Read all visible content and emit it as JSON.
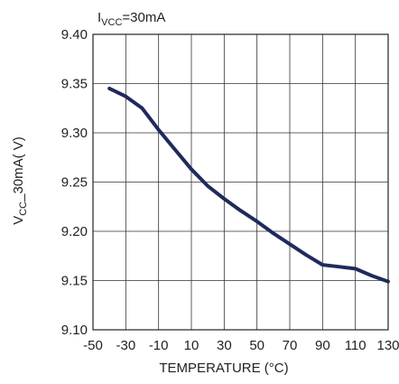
{
  "chart_data": {
    "type": "line",
    "annotation": {
      "prefix": "I",
      "subscript": "VCC",
      "suffix": "=30mA"
    },
    "xlabel": "TEMPERATURE (°C)",
    "ylabel": {
      "prefix": "V",
      "subscript": "CC",
      "suffix": "_30mA( V)"
    },
    "xlim": [
      -50,
      130
    ],
    "ylim": [
      9.1,
      9.4
    ],
    "x_ticks": [
      -50,
      -30,
      -10,
      10,
      30,
      50,
      70,
      90,
      110,
      130
    ],
    "x_tick_labels": [
      "-50",
      "-30",
      "-10",
      "10",
      "30",
      "50",
      "70",
      "90",
      "110",
      "130"
    ],
    "y_ticks": [
      9.1,
      9.15,
      9.2,
      9.25,
      9.3,
      9.35,
      9.4
    ],
    "y_tick_labels": [
      "9.10",
      "9.15",
      "9.20",
      "9.25",
      "9.30",
      "9.35",
      "9.40"
    ],
    "grid": true,
    "line_color": "#1f2a5c",
    "series": [
      {
        "x": [
          -40,
          -30,
          -20,
          -10,
          0,
          10,
          20,
          30,
          40,
          50,
          60,
          70,
          80,
          90,
          100,
          110,
          120,
          130
        ],
        "y": [
          9.345,
          9.337,
          9.325,
          9.303,
          9.283,
          9.263,
          9.246,
          9.233,
          9.221,
          9.21,
          9.198,
          9.187,
          9.176,
          9.166,
          9.164,
          9.162,
          9.155,
          9.149
        ]
      }
    ]
  }
}
